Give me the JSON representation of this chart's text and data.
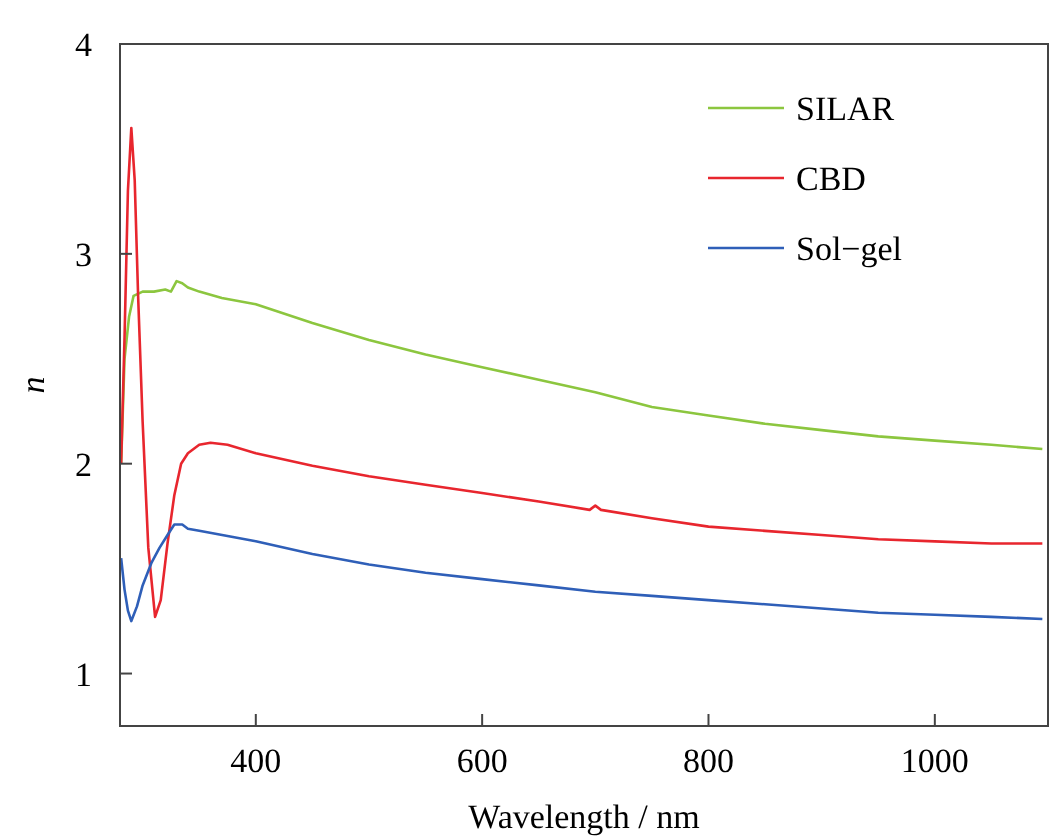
{
  "chart_data": {
    "type": "line",
    "xlabel": "Wavelength / nm",
    "ylabel": "n",
    "xlim": [
      280,
      1100
    ],
    "ylim": [
      0.75,
      4
    ],
    "xticks": [
      400,
      600,
      800,
      1000
    ],
    "yticks": [
      1,
      2,
      3,
      4
    ],
    "legend": "top right",
    "grid": false,
    "marker": "none",
    "line_style": "solid",
    "series": [
      {
        "name": "SILAR",
        "color": "#8cc63f",
        "x": [
          281,
          284,
          288,
          292,
          300,
          310,
          320,
          325,
          330,
          335,
          340,
          350,
          370,
          400,
          450,
          500,
          550,
          600,
          650,
          700,
          750,
          800,
          850,
          900,
          950,
          1000,
          1050,
          1095
        ],
        "values": [
          2.0,
          2.5,
          2.7,
          2.8,
          2.82,
          2.82,
          2.83,
          2.82,
          2.87,
          2.86,
          2.84,
          2.82,
          2.79,
          2.76,
          2.67,
          2.59,
          2.52,
          2.46,
          2.4,
          2.34,
          2.27,
          2.23,
          2.19,
          2.16,
          2.13,
          2.11,
          2.09,
          2.07
        ]
      },
      {
        "name": "CBD",
        "color": "#e8262e",
        "x": [
          281,
          284,
          287,
          290,
          293,
          296,
          300,
          305,
          311,
          316,
          322,
          328,
          334,
          340,
          350,
          360,
          375,
          400,
          450,
          500,
          550,
          600,
          650,
          695,
          700,
          705,
          750,
          800,
          850,
          900,
          950,
          1000,
          1050,
          1095
        ],
        "values": [
          2.0,
          2.6,
          3.3,
          3.6,
          3.35,
          2.8,
          2.2,
          1.6,
          1.27,
          1.35,
          1.62,
          1.85,
          2.0,
          2.05,
          2.09,
          2.1,
          2.09,
          2.05,
          1.99,
          1.94,
          1.9,
          1.86,
          1.82,
          1.78,
          1.8,
          1.78,
          1.74,
          1.7,
          1.68,
          1.66,
          1.64,
          1.63,
          1.62,
          1.62
        ]
      },
      {
        "name": "Sol−gel",
        "color": "#2f5fb8",
        "x": [
          281,
          284,
          287,
          290,
          295,
          300,
          308,
          315,
          322,
          328,
          335,
          340,
          350,
          400,
          450,
          500,
          550,
          600,
          650,
          700,
          750,
          800,
          850,
          900,
          950,
          1000,
          1050,
          1095
        ],
        "values": [
          1.55,
          1.4,
          1.3,
          1.25,
          1.32,
          1.42,
          1.53,
          1.6,
          1.66,
          1.71,
          1.71,
          1.69,
          1.68,
          1.63,
          1.57,
          1.52,
          1.48,
          1.45,
          1.42,
          1.39,
          1.37,
          1.35,
          1.33,
          1.31,
          1.29,
          1.28,
          1.27,
          1.26
        ]
      }
    ]
  }
}
